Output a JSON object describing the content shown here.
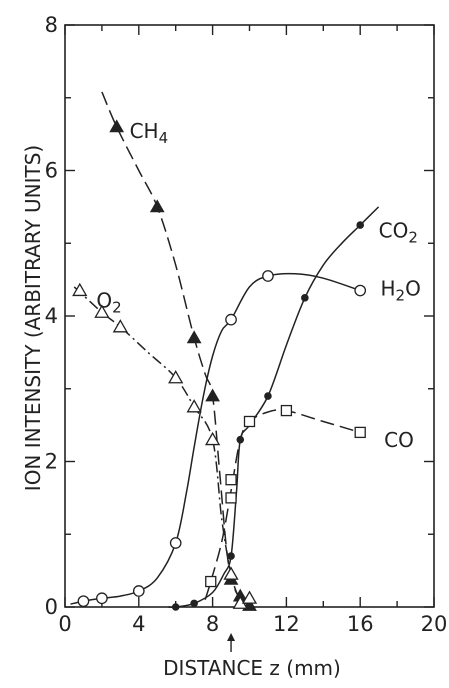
{
  "chart_data": {
    "type": "line",
    "xlabel": "DISTANCE z (mm)",
    "ylabel": "ION INTENSITY (ARBITRARY UNITS)",
    "xlim": [
      0,
      20
    ],
    "ylim": [
      0,
      8
    ],
    "grid": false,
    "x_ticks": [
      "0",
      "4",
      "8",
      "12",
      "16",
      "20"
    ],
    "y_ticks": [
      "0",
      "2",
      "4",
      "6",
      "8"
    ],
    "x_tick_values": [
      0,
      4,
      8,
      12,
      16,
      20
    ],
    "y_tick_values": [
      0,
      2,
      4,
      6,
      8
    ],
    "marker_x": 9,
    "series": [
      {
        "name": "CH4",
        "label_main": "CH",
        "label_sub": "4",
        "marker": "filled-triangle",
        "line_style": "dashed",
        "label_at": [
          3.5,
          6.45
        ],
        "points": [
          [
            2.8,
            6.6
          ],
          [
            5.0,
            5.5
          ],
          [
            7.0,
            3.7
          ],
          [
            8.0,
            2.9
          ],
          [
            9.0,
            0.38
          ],
          [
            9.5,
            0.15
          ],
          [
            10.0,
            0.02
          ]
        ],
        "curve": [
          [
            2.0,
            7.08
          ],
          [
            2.8,
            6.6
          ],
          [
            4.0,
            6.0
          ],
          [
            5.0,
            5.5
          ],
          [
            6.0,
            4.7
          ],
          [
            7.0,
            3.7
          ],
          [
            7.6,
            3.2
          ],
          [
            8.0,
            2.9
          ],
          [
            8.4,
            1.8
          ],
          [
            8.8,
            0.7
          ],
          [
            9.2,
            0.25
          ],
          [
            9.6,
            0.1
          ],
          [
            10.0,
            0.02
          ]
        ]
      },
      {
        "name": "O2",
        "label_main": "O",
        "label_sub": "2",
        "marker": "open-triangle",
        "line_style": "dashdot",
        "label_at": [
          1.7,
          4.12
        ],
        "points": [
          [
            0.8,
            4.35
          ],
          [
            2.0,
            4.05
          ],
          [
            3.0,
            3.85
          ],
          [
            6.0,
            3.15
          ],
          [
            7.0,
            2.75
          ],
          [
            8.0,
            2.3
          ],
          [
            9.0,
            0.45
          ],
          [
            9.5,
            0.05
          ],
          [
            10.0,
            0.12
          ]
        ],
        "curve": [
          [
            0.5,
            4.4
          ],
          [
            2.0,
            4.05
          ],
          [
            3.0,
            3.85
          ],
          [
            4.5,
            3.5
          ],
          [
            6.0,
            3.15
          ],
          [
            7.0,
            2.75
          ],
          [
            8.0,
            2.3
          ],
          [
            8.5,
            1.2
          ],
          [
            9.0,
            0.45
          ],
          [
            9.5,
            0.1
          ],
          [
            10.0,
            0.05
          ]
        ]
      },
      {
        "name": "H2O",
        "label_main": "H",
        "label_sub": "2",
        "label_tail": "O",
        "marker": "open-circle",
        "line_style": "solid",
        "label_at": [
          17.1,
          4.28
        ],
        "points": [
          [
            1.0,
            0.08
          ],
          [
            2.0,
            0.12
          ],
          [
            4.0,
            0.22
          ],
          [
            6.0,
            0.88
          ],
          [
            9.0,
            3.95
          ],
          [
            11.0,
            4.55
          ],
          [
            16.0,
            4.35
          ]
        ],
        "curve": [
          [
            0.3,
            0.04
          ],
          [
            1.0,
            0.08
          ],
          [
            2.0,
            0.12
          ],
          [
            3.0,
            0.15
          ],
          [
            4.0,
            0.22
          ],
          [
            5.0,
            0.4
          ],
          [
            6.0,
            0.88
          ],
          [
            6.6,
            1.6
          ],
          [
            7.0,
            2.2
          ],
          [
            7.5,
            2.9
          ],
          [
            8.0,
            3.45
          ],
          [
            8.5,
            3.8
          ],
          [
            9.0,
            3.95
          ],
          [
            10.0,
            4.4
          ],
          [
            11.0,
            4.55
          ],
          [
            12.5,
            4.58
          ],
          [
            14.0,
            4.52
          ],
          [
            16.0,
            4.35
          ]
        ]
      },
      {
        "name": "CO2",
        "label_main": "CO",
        "label_sub": "2",
        "marker": "filled-circle",
        "line_style": "solid",
        "label_at": [
          17.0,
          5.08
        ],
        "points": [
          [
            6.0,
            0.0
          ],
          [
            7.0,
            0.05
          ],
          [
            9.0,
            0.7
          ],
          [
            9.5,
            2.3
          ],
          [
            11.0,
            2.9
          ],
          [
            13.0,
            4.25
          ],
          [
            16.0,
            5.25
          ]
        ],
        "curve": [
          [
            5.6,
            0.0
          ],
          [
            6.0,
            0.0
          ],
          [
            7.0,
            0.05
          ],
          [
            8.0,
            0.2
          ],
          [
            8.6,
            0.45
          ],
          [
            9.0,
            0.7
          ],
          [
            9.3,
            1.6
          ],
          [
            9.5,
            2.3
          ],
          [
            10.0,
            2.5
          ],
          [
            11.0,
            2.9
          ],
          [
            12.0,
            3.6
          ],
          [
            13.0,
            4.25
          ],
          [
            14.0,
            4.7
          ],
          [
            15.0,
            5.0
          ],
          [
            16.0,
            5.25
          ],
          [
            17.0,
            5.5
          ]
        ]
      },
      {
        "name": "CO",
        "label_main": "CO",
        "marker": "open-square",
        "line_style": "dashed",
        "label_at": [
          17.3,
          2.2
        ],
        "points": [
          [
            7.9,
            0.35
          ],
          [
            9.0,
            1.75
          ],
          [
            9.0,
            1.5
          ],
          [
            10.0,
            2.55
          ],
          [
            12.0,
            2.7
          ],
          [
            16.0,
            2.4
          ]
        ],
        "curve": [
          [
            7.6,
            0.1
          ],
          [
            7.9,
            0.35
          ],
          [
            8.5,
            0.9
          ],
          [
            9.0,
            1.6
          ],
          [
            9.5,
            2.3
          ],
          [
            10.0,
            2.55
          ],
          [
            11.0,
            2.68
          ],
          [
            12.0,
            2.7
          ],
          [
            14.0,
            2.55
          ],
          [
            16.0,
            2.4
          ]
        ]
      }
    ]
  }
}
